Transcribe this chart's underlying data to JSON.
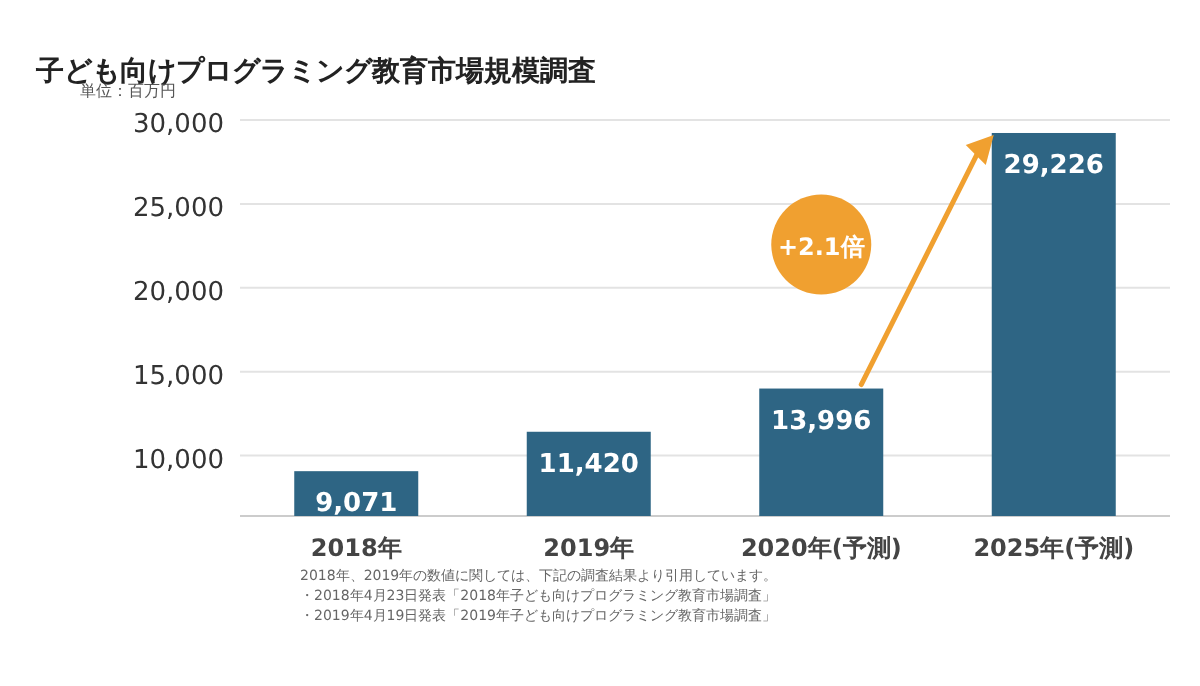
{
  "chart_data": {
    "type": "bar",
    "title": "子ども向けプログラミング教育市場規模調査",
    "ylabel": "単位：百万円",
    "categories": [
      "2018年",
      "2019年",
      "2020年(予測)",
      "2025年(予測)"
    ],
    "values": [
      9071,
      11420,
      13996,
      29226
    ],
    "value_labels": [
      "9,071",
      "11,420",
      "13,996",
      "29,226"
    ],
    "color": "#2e6584",
    "ylim": [
      6400,
      30000
    ],
    "yticks": [
      {
        "value": 10000,
        "label": "10,000"
      },
      {
        "value": 15000,
        "label": "15,000"
      },
      {
        "value": 20000,
        "label": "20,000"
      },
      {
        "value": 25000,
        "label": "25,000"
      },
      {
        "value": 30000,
        "label": "30,000"
      }
    ],
    "grid": "y",
    "annotations": [
      "+2.1倍",
      "2018年、2019年の数値に関しては、下記の調査結果より引用しています。",
      "・2018年4月23日発表「2018年子ども向けプログラミング教育市場調査」",
      "・2019年4月19日発表「2019年子ども向けプログラミング教育市場調査」"
    ]
  }
}
